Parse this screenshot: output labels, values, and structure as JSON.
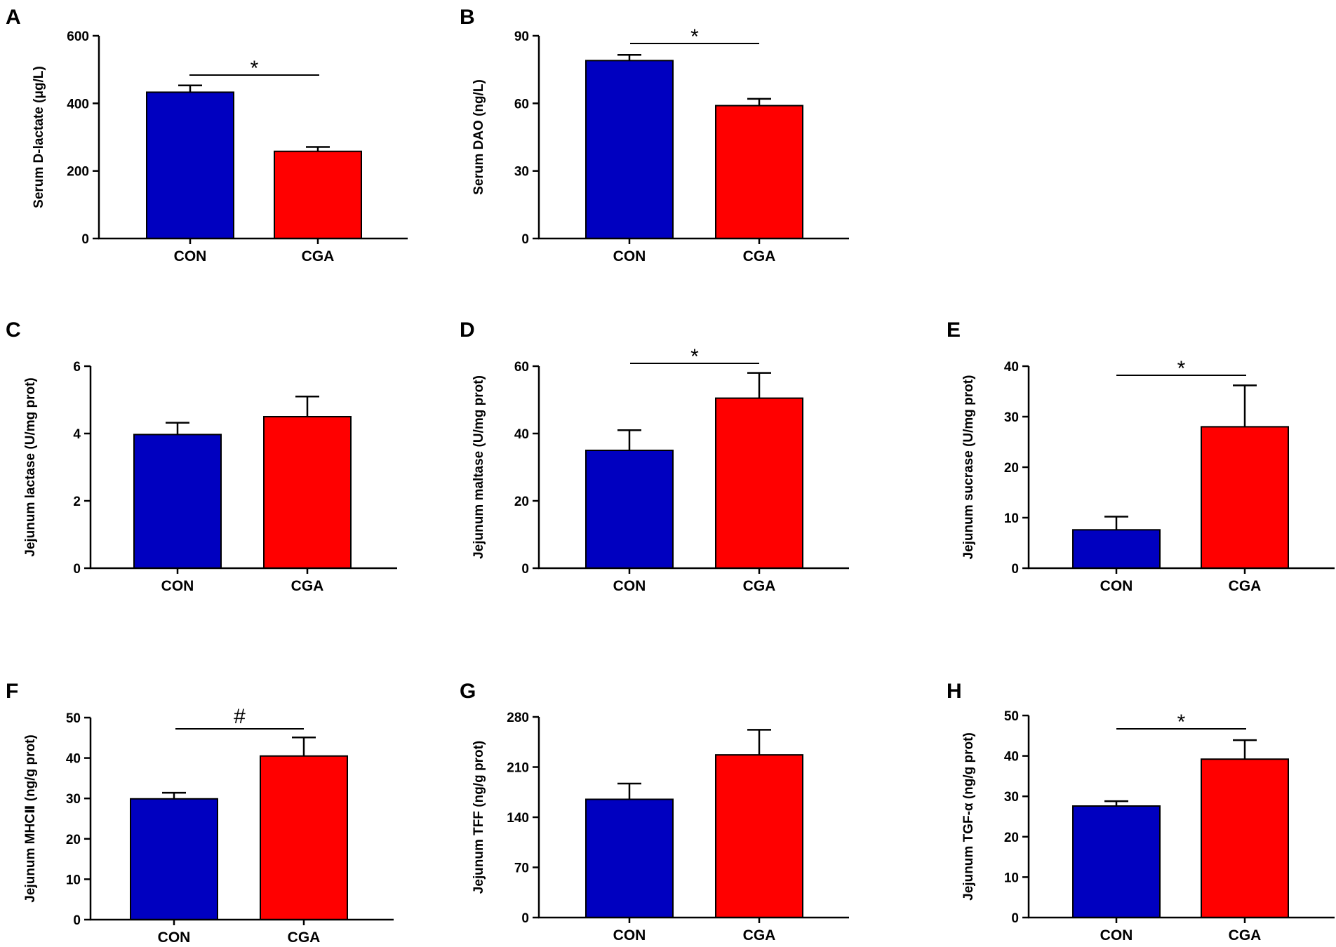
{
  "colors": {
    "CON": "#0000c0",
    "CGA": "#ff0000",
    "axis": "#000000"
  },
  "chart_data": [
    {
      "panel": "A",
      "type": "bar",
      "categories": [
        "CON",
        "CGA"
      ],
      "values": [
        433,
        258
      ],
      "errors": [
        20,
        13
      ],
      "ylabel": "Serum D-lactate  (μg/L)",
      "ylim": [
        0,
        600
      ],
      "yticks": [
        "0",
        "200",
        "400",
        "600"
      ],
      "significance": "*"
    },
    {
      "panel": "B",
      "type": "bar",
      "categories": [
        "CON",
        "CGA"
      ],
      "values": [
        79,
        59
      ],
      "errors": [
        2.5,
        3
      ],
      "ylabel": "Serum DAO (ng/L)",
      "ylim": [
        0,
        90
      ],
      "yticks": [
        "0",
        "30",
        "60",
        "90"
      ],
      "significance": "*"
    },
    {
      "panel": "C",
      "type": "bar",
      "categories": [
        "CON",
        "CGA"
      ],
      "values": [
        3.97,
        4.5
      ],
      "errors": [
        0.35,
        0.6
      ],
      "ylabel": "Jejunum lactase (U/mg prot)",
      "ylim": [
        0,
        6
      ],
      "yticks": [
        "0",
        "2",
        "4",
        "6"
      ],
      "significance": ""
    },
    {
      "panel": "D",
      "type": "bar",
      "categories": [
        "CON",
        "CGA"
      ],
      "values": [
        35,
        50.5
      ],
      "errors": [
        6,
        7.5
      ],
      "ylabel": "Jejunum maltase (U/mg prot)",
      "ylim": [
        0,
        60
      ],
      "yticks": [
        "0",
        "20",
        "40",
        "60"
      ],
      "significance": "*"
    },
    {
      "panel": "E",
      "type": "bar",
      "categories": [
        "CON",
        "CGA"
      ],
      "values": [
        7.6,
        28
      ],
      "errors": [
        2.6,
        8.2
      ],
      "ylabel": "Jejunum sucrase (U/mg prot)",
      "ylim": [
        0,
        40
      ],
      "yticks": [
        "0",
        "10",
        "20",
        "30",
        "40"
      ],
      "significance": "*"
    },
    {
      "panel": "F",
      "type": "bar",
      "categories": [
        "CON",
        "CGA"
      ],
      "values": [
        29.9,
        40.5
      ],
      "errors": [
        1.5,
        4.6
      ],
      "ylabel": "Jejunum MHCⅡ  (ng/g prot)",
      "ylim": [
        0,
        50
      ],
      "yticks": [
        "0",
        "10",
        "20",
        "30",
        "40",
        "50"
      ],
      "significance": "#"
    },
    {
      "panel": "G",
      "type": "bar",
      "categories": [
        "CON",
        "CGA"
      ],
      "values": [
        165,
        227
      ],
      "errors": [
        22,
        35
      ],
      "ylabel": "Jejunum TFF  (ng/g prot)",
      "ylim": [
        0,
        280
      ],
      "yticks": [
        "0",
        "70",
        "140",
        "210",
        "280"
      ],
      "significance": ""
    },
    {
      "panel": "H",
      "type": "bar",
      "categories": [
        "CON",
        "CGA"
      ],
      "values": [
        27.6,
        39.2
      ],
      "errors": [
        1.2,
        4.7
      ],
      "ylabel": "Jejunum TGF-α  (ng/g prot)",
      "ylim": [
        0,
        50
      ],
      "yticks": [
        "0",
        "10",
        "20",
        "30",
        "40",
        "50"
      ],
      "significance": "*"
    }
  ]
}
